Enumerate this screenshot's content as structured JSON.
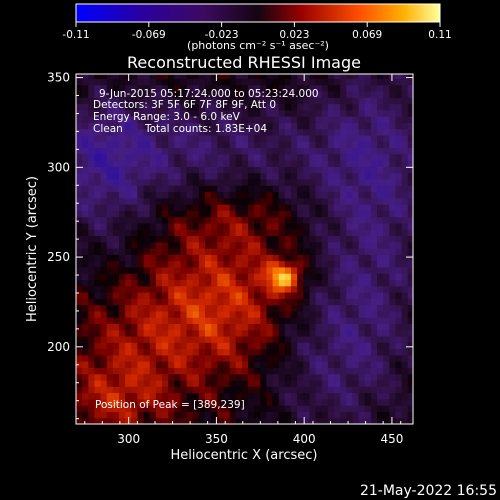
{
  "colorbar": {
    "ticks": [
      "-0.11",
      "-0.069",
      "-0.023",
      "0.023",
      "0.069",
      "0.11"
    ],
    "units_label": "(photons cm⁻² s⁻¹ asec⁻²)",
    "range": [
      -0.11,
      0.11
    ]
  },
  "chart_data": {
    "type": "heatmap",
    "title": "Reconstructed RHESSI Image",
    "xlabel": "Heliocentric X (arcsec)",
    "ylabel": "Heliocentric Y (arcsec)",
    "xlim": [
      270,
      462
    ],
    "ylim": [
      157,
      352
    ],
    "xticks": [
      300,
      350,
      400,
      450
    ],
    "yticks": [
      200,
      250,
      300,
      350
    ],
    "xtick_labels": [
      "300",
      "350",
      "400",
      "450"
    ],
    "ytick_labels": [
      "200",
      "250",
      "300",
      "350"
    ],
    "colormap": "hot-blue",
    "value_range": [
      -0.11,
      0.11
    ],
    "peak": {
      "x": 389,
      "y": 239,
      "value": 0.11
    },
    "annotations": {
      "time_range": "9-Jun-2015 05:17:24.000 to 05:23:24.000",
      "detectors": "Detectors: 3F 5F 6F 7F 8F 9F, Att 0",
      "energy": "Energy Range: 3.0 - 6.0 keV",
      "clean": "Clean",
      "counts": "Total counts: 1.83E+04",
      "peak_text": "Position of Peak = [389,239]"
    },
    "timestamp": "21-May-2022 16:55"
  },
  "colors": {
    "colormap_stops": [
      "#0000ff",
      "#2a0070",
      "#260a3c",
      "#000000",
      "#7a0000",
      "#e03000",
      "#ff9000",
      "#ffff80",
      "#ffffff"
    ]
  }
}
